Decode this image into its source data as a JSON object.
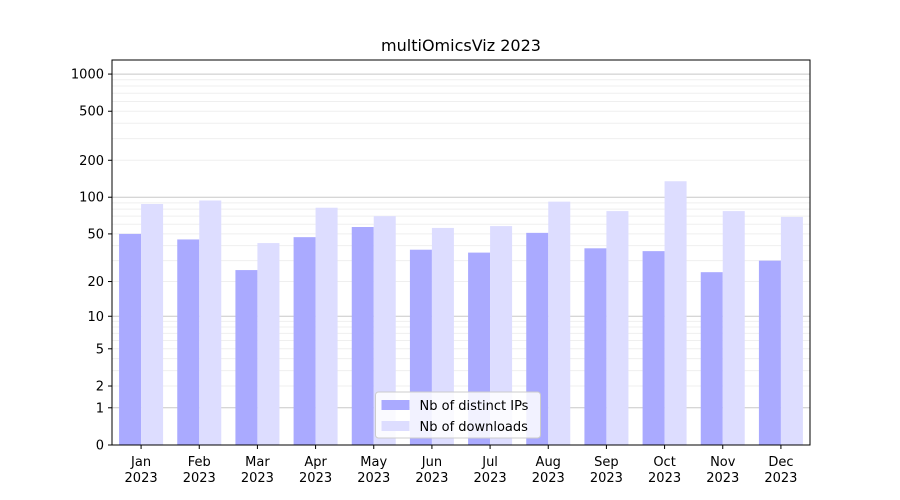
{
  "chart_data": {
    "type": "bar",
    "title": "multiOmicsViz 2023",
    "xlabel": "",
    "ylabel": "",
    "categories": [
      [
        "Jan",
        "2023"
      ],
      [
        "Feb",
        "2023"
      ],
      [
        "Mar",
        "2023"
      ],
      [
        "Apr",
        "2023"
      ],
      [
        "May",
        "2023"
      ],
      [
        "Jun",
        "2023"
      ],
      [
        "Jul",
        "2023"
      ],
      [
        "Aug",
        "2023"
      ],
      [
        "Sep",
        "2023"
      ],
      [
        "Oct",
        "2023"
      ],
      [
        "Nov",
        "2023"
      ],
      [
        "Dec",
        "2023"
      ]
    ],
    "series": [
      {
        "name": "Nb of distinct IPs",
        "color": "#aaaaff",
        "values": [
          50,
          45,
          25,
          47,
          57,
          37,
          35,
          51,
          38,
          36,
          24,
          30
        ]
      },
      {
        "name": "Nb of downloads",
        "color": "#ddddff",
        "values": [
          88,
          94,
          42,
          82,
          70,
          56,
          58,
          92,
          77,
          135,
          77,
          69
        ]
      }
    ],
    "yscale": "symlog",
    "ylim": [
      0,
      1300
    ],
    "yticks": [
      0,
      1,
      2,
      5,
      10,
      20,
      50,
      100,
      200,
      500,
      1000
    ],
    "legend_location": "lower center",
    "grid": true
  }
}
